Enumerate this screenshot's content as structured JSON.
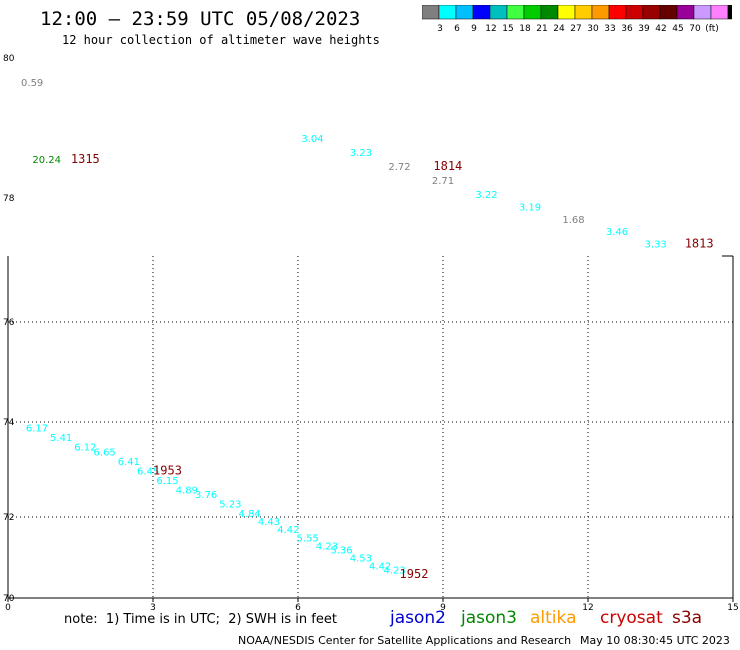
{
  "header": {
    "title": "12:00 — 23:59 UTC 05/08/2023",
    "subtitle": "12 hour collection of altimeter wave heights"
  },
  "colorbar": {
    "colors": [
      "#7f7f7f",
      "#00ffff",
      "#00bfff",
      "#0000ff",
      "#00bfbf",
      "#40ff40",
      "#00cc00",
      "#008800",
      "#ffff00",
      "#ffcc00",
      "#ff9900",
      "#ff0000",
      "#cc0000",
      "#990000",
      "#660000",
      "#990099",
      "#cc99ff",
      "#ff80ff",
      "#000000"
    ],
    "labels": [
      "3",
      "6",
      "9",
      "12",
      "15",
      "18",
      "21",
      "24",
      "27",
      "30",
      "33",
      "36",
      "39",
      "42",
      "45",
      "70",
      "(ft)"
    ]
  },
  "chart_data": {
    "type": "scatter",
    "xlim": [
      0,
      15
    ],
    "x_ticks": [
      "0",
      "3",
      "6",
      "9",
      "12",
      "15"
    ],
    "y_ticks": [
      "80",
      "78",
      "76",
      "74",
      "72",
      "70"
    ],
    "grid": true,
    "points": [
      {
        "x": 0.5,
        "y": 79.6,
        "label": "0.59",
        "color": "#7f7f7f"
      },
      {
        "x": 0.8,
        "y": 78.5,
        "label": "20.24",
        "color": "#008800"
      },
      {
        "x": 6.3,
        "y": 78.8,
        "label": "3.04",
        "color": "#00ffff"
      },
      {
        "x": 7.3,
        "y": 78.6,
        "label": "3.23",
        "color": "#00ffff"
      },
      {
        "x": 8.1,
        "y": 78.4,
        "label": "2.72",
        "color": "#7f7f7f"
      },
      {
        "x": 9.0,
        "y": 78.2,
        "label": "2.71",
        "color": "#7f7f7f"
      },
      {
        "x": 9.9,
        "y": 78.0,
        "label": "3.22",
        "color": "#00ffff"
      },
      {
        "x": 10.8,
        "y": 77.8,
        "label": "3.19",
        "color": "#00ffff"
      },
      {
        "x": 11.7,
        "y": 77.6,
        "label": "1.68",
        "color": "#7f7f7f"
      },
      {
        "x": 12.6,
        "y": 77.4,
        "label": "3.46",
        "color": "#00ffff"
      },
      {
        "x": 13.4,
        "y": 77.2,
        "label": "3.33",
        "color": "#00ffff"
      },
      {
        "x": 0.6,
        "y": 73.8,
        "label": "6.17",
        "color": "#00ffff"
      },
      {
        "x": 1.1,
        "y": 73.6,
        "label": "5.41",
        "color": "#00ffff"
      },
      {
        "x": 1.6,
        "y": 73.4,
        "label": "6.12",
        "color": "#00ffff"
      },
      {
        "x": 2.0,
        "y": 73.3,
        "label": "6.65",
        "color": "#00ffff"
      },
      {
        "x": 2.5,
        "y": 73.1,
        "label": "6.41",
        "color": "#00ffff"
      },
      {
        "x": 2.9,
        "y": 72.9,
        "label": "6.45",
        "color": "#00ffff"
      },
      {
        "x": 3.3,
        "y": 72.7,
        "label": "6.15",
        "color": "#00ffff"
      },
      {
        "x": 3.7,
        "y": 72.5,
        "label": "4.89",
        "color": "#00ffff"
      },
      {
        "x": 4.1,
        "y": 72.4,
        "label": "3.76",
        "color": "#00ffff"
      },
      {
        "x": 4.6,
        "y": 72.2,
        "label": "5.23",
        "color": "#00ffff"
      },
      {
        "x": 5.0,
        "y": 72.0,
        "label": "4.84",
        "color": "#00ffff"
      },
      {
        "x": 5.4,
        "y": 71.8,
        "label": "4.43",
        "color": "#00ffff"
      },
      {
        "x": 5.8,
        "y": 71.6,
        "label": "4.42",
        "color": "#00ffff"
      },
      {
        "x": 6.2,
        "y": 71.4,
        "label": "5.55",
        "color": "#00ffff"
      },
      {
        "x": 6.6,
        "y": 71.2,
        "label": "4.23",
        "color": "#00ffff"
      },
      {
        "x": 6.9,
        "y": 71.1,
        "label": "5.36",
        "color": "#00ffff"
      },
      {
        "x": 7.3,
        "y": 70.9,
        "label": "4.53",
        "color": "#00ffff"
      },
      {
        "x": 7.7,
        "y": 70.7,
        "label": "4.42",
        "color": "#00ffff"
      },
      {
        "x": 8.0,
        "y": 70.6,
        "label": "4.23",
        "color": "#00ffff"
      }
    ],
    "times": [
      {
        "x": 1.6,
        "y": 78.5,
        "label": "1315",
        "color": "#880000"
      },
      {
        "x": 9.1,
        "y": 78.4,
        "label": "1814",
        "color": "#880000"
      },
      {
        "x": 14.3,
        "y": 77.2,
        "label": "1813",
        "color": "#880000"
      },
      {
        "x": 3.3,
        "y": 72.9,
        "label": "1953",
        "color": "#880000"
      },
      {
        "x": 8.4,
        "y": 70.5,
        "label": "1952",
        "color": "#880000"
      }
    ]
  },
  "note": "note:  1) Time is in UTC;  2) SWH is in feet",
  "satellites": [
    {
      "name": "jason2",
      "color": "#0000cc"
    },
    {
      "name": "jason3",
      "color": "#008800"
    },
    {
      "name": "altika",
      "color": "#ff9900"
    },
    {
      "name": "cryosat",
      "color": "#cc0000"
    },
    {
      "name": "s3a",
      "color": "#880000"
    }
  ],
  "footer": {
    "left": "NOAA/NESDIS Center for Satellite Applications and Research",
    "right": "May 10 08:30:45 UTC 2023"
  }
}
